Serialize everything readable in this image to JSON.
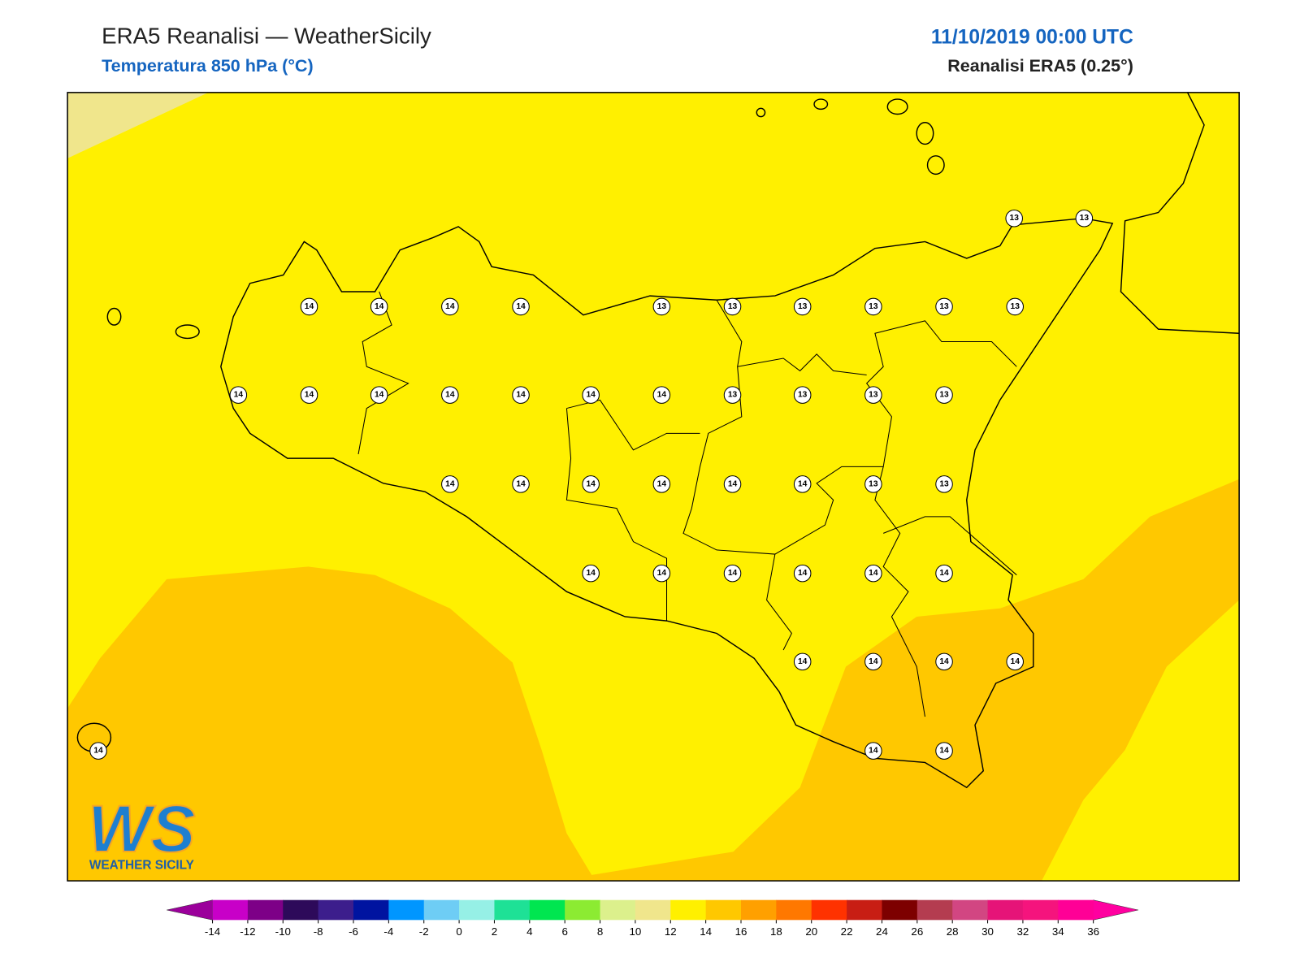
{
  "header": {
    "title": "ERA5 Reanalisi — WeatherSicily",
    "subtitle": "Temperatura 850 hPa (°C)",
    "datetime": "11/10/2019 00:00 UTC",
    "source": "Reanalisi ERA5 (0.25°)"
  },
  "stations": [
    13,
    13,
    14,
    14,
    14,
    14,
    13,
    13,
    13,
    13,
    13,
    13,
    14,
    14,
    14,
    14,
    14,
    14,
    14,
    13,
    13,
    13,
    13,
    14,
    14,
    14,
    14,
    14,
    14,
    13,
    13,
    14,
    14,
    14,
    14,
    14,
    14,
    14,
    14,
    14,
    14,
    14,
    14,
    14
  ],
  "colorbar": {
    "ticks": [
      -14,
      -12,
      -10,
      -8,
      -6,
      -4,
      -2,
      0,
      2,
      4,
      6,
      8,
      10,
      12,
      14,
      16,
      18,
      20,
      22,
      24,
      26,
      28,
      30,
      32,
      34,
      36
    ],
    "colors": [
      "#c800c8",
      "#7d0087",
      "#2d0a5a",
      "#3c1e8c",
      "#0014a0",
      "#0096ff",
      "#6ecdf5",
      "#96f0e6",
      "#1ee196",
      "#00e650",
      "#8ceb32",
      "#dcf08c",
      "#f0e68c",
      "#fff000",
      "#ffc800",
      "#ffa000",
      "#ff7800",
      "#ff3200",
      "#c81e14",
      "#7d0000",
      "#b43c50",
      "#d24682",
      "#e61478",
      "#f5147d",
      "#ff0096"
    ],
    "under": "#9b009b",
    "over": "#ff00a0"
  },
  "logo": {
    "mark": "WS",
    "text": "WEATHER SICILY"
  }
}
